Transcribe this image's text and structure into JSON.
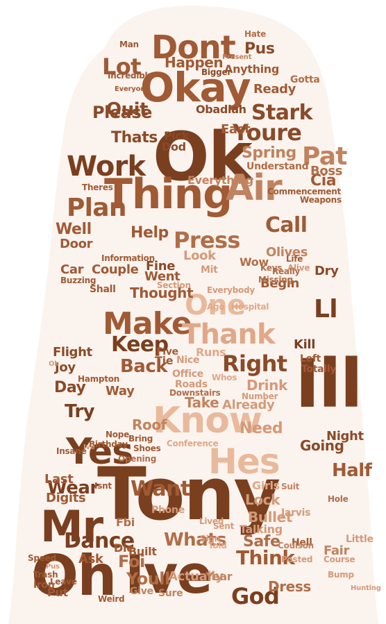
{
  "words": [
    {
      "text": "Ok",
      "color": "#7a3f1f"
    },
    {
      "text": "Tony",
      "color": "#7a3f1f"
    },
    {
      "text": "Ive",
      "color": "#7a3f1f"
    },
    {
      "text": "Ill",
      "color": "#7a3f1f"
    },
    {
      "text": "Oh",
      "color": "#7a3f1f"
    },
    {
      "text": "Thing",
      "color": "#a05a34"
    },
    {
      "text": "Okay",
      "color": "#a05a34"
    },
    {
      "text": "Know",
      "color": "#e9b99c"
    },
    {
      "text": "Hes",
      "color": "#e9b99c"
    },
    {
      "text": "Yes",
      "color": "#7a3f1f"
    },
    {
      "text": "Dont",
      "color": "#a05a34"
    },
    {
      "text": "Air",
      "color": "#c0835f"
    },
    {
      "text": "Mr",
      "color": "#7a3f1f"
    },
    {
      "text": "Make",
      "color": "#a05a34"
    },
    {
      "text": "One",
      "color": "#e9b99c"
    },
    {
      "text": "Thank",
      "color": "#e0a888"
    },
    {
      "text": "Youre",
      "color": "#8a4a28"
    },
    {
      "text": "Work",
      "color": "#7a3f1f"
    },
    {
      "text": "Plan",
      "color": "#a05a34"
    },
    {
      "text": "Press",
      "color": "#b06e48"
    },
    {
      "text": "Stark",
      "color": "#8a4a28"
    },
    {
      "text": "Lot",
      "color": "#a05a34"
    },
    {
      "text": "Right",
      "color": "#8a4a28"
    },
    {
      "text": "God",
      "color": "#7a3f1f"
    },
    {
      "text": "Keep",
      "color": "#7a3f1f"
    },
    {
      "text": "Dance",
      "color": "#7a3f1f"
    },
    {
      "text": "Call",
      "color": "#a05a34"
    },
    {
      "text": "Pat",
      "color": "#c0835f"
    },
    {
      "text": "Want",
      "color": "#a05a34"
    },
    {
      "text": "Whats",
      "color": "#b06e48"
    },
    {
      "text": "Think",
      "color": "#a05a34"
    },
    {
      "text": "Quit",
      "color": "#8a4a28"
    },
    {
      "text": "Please",
      "color": "#8a4a28"
    },
    {
      "text": "Back",
      "color": "#a05a34"
    },
    {
      "text": "Try",
      "color": "#7a3f1f"
    },
    {
      "text": "Wear",
      "color": "#7a3f1f"
    },
    {
      "text": "Help",
      "color": "#a05a34"
    },
    {
      "text": "Half",
      "color": "#a05a34"
    },
    {
      "text": "Safe",
      "color": "#b06e48"
    },
    {
      "text": "Thats",
      "color": "#8a4a28"
    },
    {
      "text": "Day",
      "color": "#8a4a28"
    },
    {
      "text": "Spring",
      "color": "#c0835f"
    },
    {
      "text": "Well",
      "color": "#a05a34"
    },
    {
      "text": "Going",
      "color": "#8a4a28"
    },
    {
      "text": "Take",
      "color": "#c0835f"
    },
    {
      "text": "Kill",
      "color": "#7a3f1f"
    },
    {
      "text": "Ll",
      "color": "#7a3f1f"
    },
    {
      "text": "Cia",
      "color": "#a05a34"
    },
    {
      "text": "Need",
      "color": "#d49a78"
    },
    {
      "text": "Drink",
      "color": "#d49a78"
    },
    {
      "text": "Foi",
      "color": "#b06e48"
    },
    {
      "text": "Youll",
      "color": "#b06e48"
    },
    {
      "text": "Fine",
      "color": "#8a4a28"
    },
    {
      "text": "Went",
      "color": "#a05a34"
    },
    {
      "text": "Obadiah",
      "color": "#8a4a28"
    },
    {
      "text": "Night",
      "color": "#8a4a28"
    },
    {
      "text": "Dry",
      "color": "#8a4a28"
    },
    {
      "text": "Door",
      "color": "#a05a34"
    },
    {
      "text": "Car",
      "color": "#a05a34"
    },
    {
      "text": "Couple",
      "color": "#a05a34"
    },
    {
      "text": "Pus",
      "color": "#8a4a28"
    },
    {
      "text": "Thought",
      "color": "#a05a34"
    },
    {
      "text": "Dress",
      "color": "#b06e48"
    },
    {
      "text": "Roof",
      "color": "#c0835f"
    },
    {
      "text": "Happen",
      "color": "#a05a34"
    },
    {
      "text": "Bullet",
      "color": "#d49a78"
    },
    {
      "text": "Lock",
      "color": "#d49a78"
    },
    {
      "text": "Look",
      "color": "#d49a78"
    },
    {
      "text": "Fair",
      "color": "#c0835f"
    },
    {
      "text": "Last",
      "color": "#a05a34"
    },
    {
      "text": "Digits",
      "color": "#a05a34"
    },
    {
      "text": "Ask",
      "color": "#a05a34"
    },
    {
      "text": "Everything",
      "color": "#c0835f"
    },
    {
      "text": "Already",
      "color": "#d49a78"
    },
    {
      "text": "Olives",
      "color": "#c0835f"
    },
    {
      "text": "Boss",
      "color": "#b06e48"
    },
    {
      "text": "Built",
      "color": "#a05a34"
    },
    {
      "text": "Die",
      "color": "#a05a34"
    },
    {
      "text": "Joy",
      "color": "#8a4a28"
    },
    {
      "text": "Flight",
      "color": "#8a4a28"
    },
    {
      "text": "Ready",
      "color": "#a05a34"
    },
    {
      "text": "East",
      "color": "#a05a34"
    },
    {
      "text": "Talking",
      "color": "#d49a78"
    },
    {
      "text": "Begin",
      "color": "#a05a34"
    },
    {
      "text": "Girls",
      "color": "#e0a888"
    },
    {
      "text": "Fbi",
      "color": "#b06e48"
    },
    {
      "text": "Shall",
      "color": "#a05a34"
    },
    {
      "text": "Pick",
      "color": "#8a4a28"
    },
    {
      "text": "Dod",
      "color": "#8a4a28"
    },
    {
      "text": "Way",
      "color": "#a05a34"
    },
    {
      "text": "Anything",
      "color": "#a05a34"
    },
    {
      "text": "Gotta",
      "color": "#b06e48"
    },
    {
      "text": "Understand",
      "color": "#b06e48"
    },
    {
      "text": "Wow",
      "color": "#b06e48"
    },
    {
      "text": "Actually",
      "color": "#d49a78"
    },
    {
      "text": "Year",
      "color": "#c0835f"
    },
    {
      "text": "Information",
      "color": "#a05a34"
    },
    {
      "text": "Office",
      "color": "#d49a78"
    },
    {
      "text": "Nice",
      "color": "#d49a78"
    },
    {
      "text": "Runs",
      "color": "#e0a888"
    },
    {
      "text": "Tie",
      "color": "#a05a34"
    },
    {
      "text": "Five",
      "color": "#a05a34"
    },
    {
      "text": "Roads",
      "color": "#d49a78"
    },
    {
      "text": "Buzzing",
      "color": "#a05a34"
    },
    {
      "text": "Sure",
      "color": "#c0835f"
    },
    {
      "text": "Give",
      "color": "#c0835f"
    },
    {
      "text": "Present",
      "color": "#c0835f"
    },
    {
      "text": "Bigger",
      "color": "#8a4a28"
    },
    {
      "text": "Theres",
      "color": "#a05a34"
    },
    {
      "text": "Commencement",
      "color": "#a05a34"
    },
    {
      "text": "Weapons",
      "color": "#a05a34"
    },
    {
      "text": "Section",
      "color": "#d49a78"
    },
    {
      "text": "Jarvis",
      "color": "#d49a78"
    },
    {
      "text": "Hampton",
      "color": "#a05a34"
    },
    {
      "text": "Hell",
      "color": "#a05a34"
    },
    {
      "text": "Life",
      "color": "#a05a34"
    },
    {
      "text": "Suit",
      "color": "#c0835f"
    },
    {
      "text": "Totally",
      "color": "#a05a34"
    },
    {
      "text": "Left",
      "color": "#a05a34"
    },
    {
      "text": "Incredibly",
      "color": "#a05a34"
    },
    {
      "text": "Everyone",
      "color": "#a05a34"
    },
    {
      "text": "Man",
      "color": "#a05a34"
    },
    {
      "text": "Hate",
      "color": "#b06e48"
    },
    {
      "text": "Hole",
      "color": "#b06e48"
    },
    {
      "text": "Phone",
      "color": "#d49a78"
    },
    {
      "text": "Iron",
      "color": "#a05a34"
    },
    {
      "text": "Trash",
      "color": "#a05a34"
    },
    {
      "text": "Speed",
      "color": "#a05a34"
    },
    {
      "text": "Put",
      "color": "#a05a34"
    },
    {
      "text": "Leave",
      "color": "#a05a34"
    },
    {
      "text": "Course",
      "color": "#d49a78"
    },
    {
      "text": "Little",
      "color": "#d49a78"
    },
    {
      "text": "Bump",
      "color": "#d49a78"
    },
    {
      "text": "Hunting",
      "color": "#d49a78"
    },
    {
      "text": "Alive",
      "color": "#d49a78"
    },
    {
      "text": "Everybody",
      "color": "#d49a78"
    },
    {
      "text": "Ago",
      "color": "#e0a888"
    },
    {
      "text": "Hospital",
      "color": "#e0a888"
    },
    {
      "text": "Keys",
      "color": "#b06e48"
    },
    {
      "text": "Missing",
      "color": "#b06e48"
    },
    {
      "text": "Really",
      "color": "#b06e48"
    },
    {
      "text": "Mit",
      "color": "#d49a78"
    },
    {
      "text": "Conference",
      "color": "#e0a888"
    },
    {
      "text": "Opening",
      "color": "#b06e48"
    },
    {
      "text": "Bring",
      "color": "#a05a34"
    },
    {
      "text": "Shoes",
      "color": "#a05a34"
    },
    {
      "text": "Nope",
      "color": "#a05a34"
    },
    {
      "text": "Birthday",
      "color": "#a05a34"
    },
    {
      "text": "Insane",
      "color": "#a05a34"
    },
    {
      "text": "Isnt",
      "color": "#a05a34"
    },
    {
      "text": "Weird",
      "color": "#a05a34"
    },
    {
      "text": "Coulson",
      "color": "#c0835f"
    },
    {
      "text": "Posted",
      "color": "#d49a78"
    },
    {
      "text": "Lived",
      "color": "#d49a78"
    },
    {
      "text": "Sign",
      "color": "#d49a78"
    },
    {
      "text": "Sent",
      "color": "#d49a78"
    },
    {
      "text": "Told",
      "color": "#e0a888"
    },
    {
      "text": "Whos",
      "color": "#e0a888"
    },
    {
      "text": "Downstairs",
      "color": "#b06e48"
    },
    {
      "text": "Number",
      "color": "#d49a78"
    },
    {
      "text": "Ive",
      "color": "#d49a78"
    },
    {
      "text": "Ok",
      "color": "#d49a78"
    },
    {
      "text": "Pus",
      "color": "#d49a78"
    }
  ]
}
